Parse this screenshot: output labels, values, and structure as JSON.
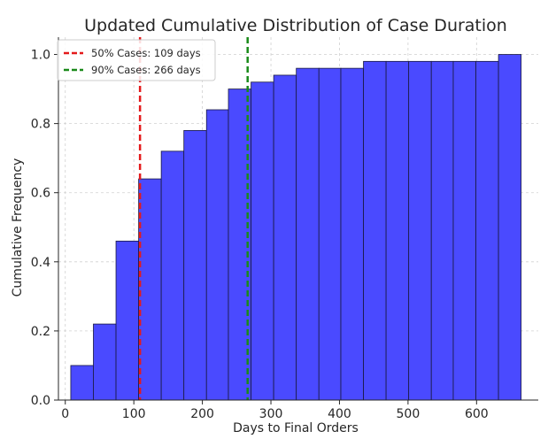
{
  "chart_data": {
    "type": "bar",
    "title": "Updated Cumulative Distribution of Case Duration",
    "xlabel": "Days to Final Orders",
    "ylabel": "Cumulative Frequency",
    "xlim": [
      -10,
      690
    ],
    "ylim": [
      0,
      1.05
    ],
    "x_ticks": [
      0,
      100,
      200,
      300,
      400,
      500,
      600
    ],
    "y_ticks": [
      0.0,
      0.2,
      0.4,
      0.6,
      0.8,
      1.0
    ],
    "x_tick_labels": [
      "0",
      "100",
      "200",
      "300",
      "400",
      "500",
      "600"
    ],
    "y_tick_labels": [
      "0.0",
      "0.2",
      "0.4",
      "0.6",
      "0.8",
      "1.0"
    ],
    "grid": true,
    "legend_placement": "top-left",
    "bin_edges": [
      8,
      41,
      74,
      107,
      140,
      173,
      206,
      238,
      271,
      304,
      337,
      370,
      402,
      435,
      468,
      501,
      534,
      566,
      599,
      632,
      665
    ],
    "values": [
      0.1,
      0.22,
      0.46,
      0.64,
      0.72,
      0.78,
      0.84,
      0.9,
      0.92,
      0.94,
      0.96,
      0.96,
      0.96,
      0.98,
      0.98,
      0.98,
      0.98,
      0.98,
      0.98,
      1.0
    ],
    "bar_color": "#4a4aff",
    "reference_lines": [
      {
        "label": "50% Cases: 109 days",
        "x": 109,
        "color": "#e41a1c"
      },
      {
        "label": "90% Cases: 266 days",
        "x": 266,
        "color": "#1a8a1a"
      }
    ]
  }
}
